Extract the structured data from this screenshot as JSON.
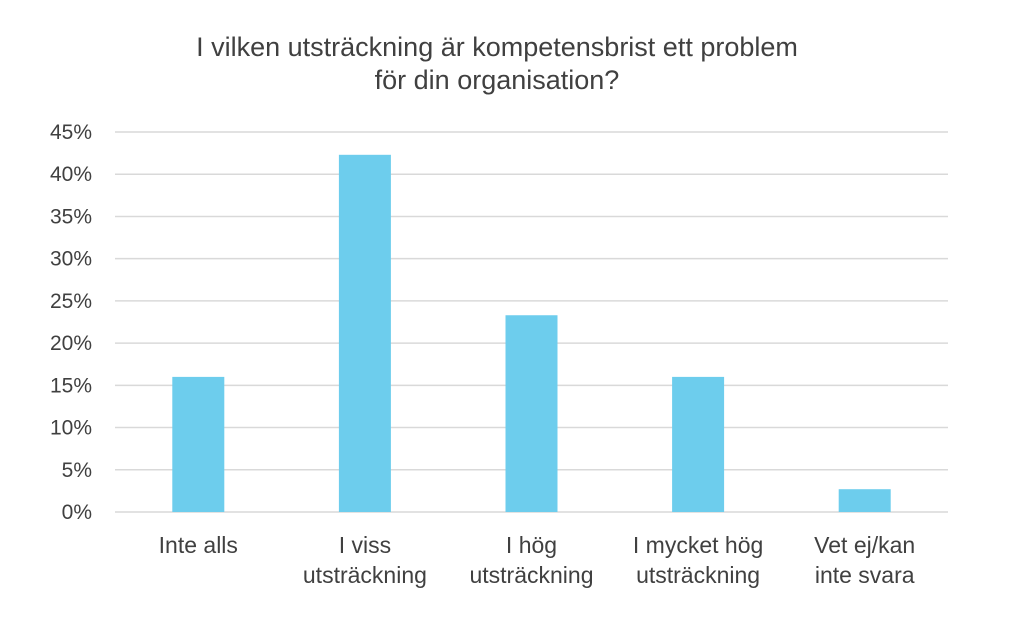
{
  "chart_data": {
    "type": "bar",
    "title": [
      "I vilken utsträckning är kompetensbrist ett problem",
      "för din organisation?"
    ],
    "categories": [
      [
        "Inte alls"
      ],
      [
        "I viss",
        "utsträckning"
      ],
      [
        "I hög",
        "utsträckning"
      ],
      [
        "I mycket hög",
        "utsträckning"
      ],
      [
        "Vet ej/kan",
        "inte svara"
      ]
    ],
    "values": [
      0.16,
      0.423,
      0.233,
      0.16,
      0.027
    ],
    "y_ticks": [
      "0%",
      "5%",
      "10%",
      "15%",
      "20%",
      "25%",
      "30%",
      "35%",
      "40%",
      "45%"
    ],
    "ylim": [
      0,
      0.45
    ],
    "grid": true,
    "bar_color": "#6dcded",
    "grid_color": "#d9d9d9",
    "text_color": "#404040"
  }
}
